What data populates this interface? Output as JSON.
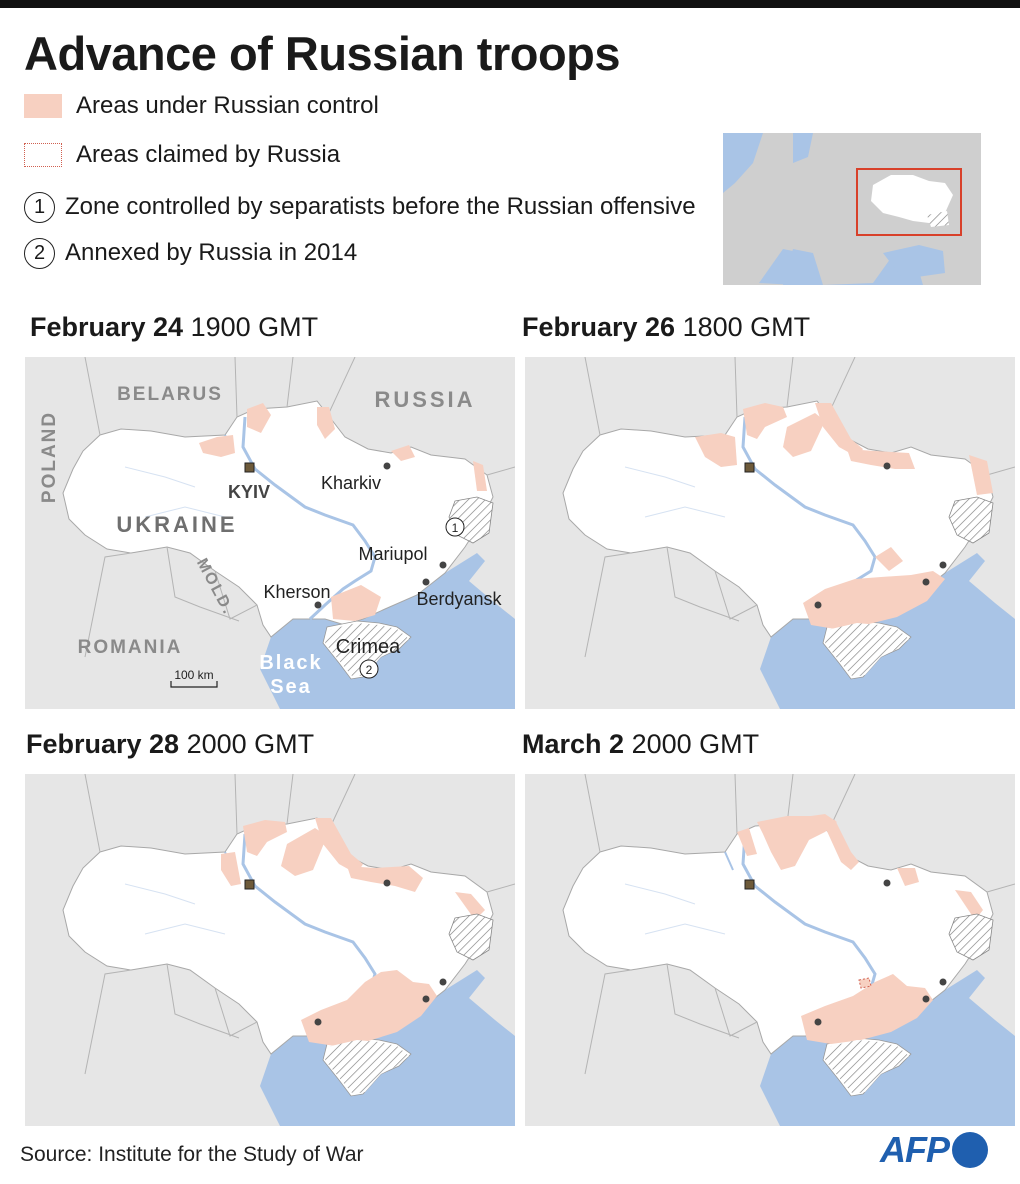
{
  "title": "Advance of Russian troops",
  "legend": {
    "control": "Areas under Russian control",
    "claimed": "Areas claimed by Russia",
    "zone1_num": "1",
    "zone1": "Zone controlled by separatists before the Russian offensive",
    "zone2_num": "2",
    "zone2": "Annexed by Russia in 2014"
  },
  "panels": [
    {
      "date": "February 24",
      "time": "1900 GMT"
    },
    {
      "date": "February 26",
      "time": "1800 GMT"
    },
    {
      "date": "February 28",
      "time": "2000 GMT"
    },
    {
      "date": "March 2",
      "time": "2000 GMT"
    }
  ],
  "map_labels": {
    "belarus": "BELARUS",
    "russia": "RUSSIA",
    "poland": "POLAND",
    "ukraine": "UKRAINE",
    "kyiv": "KYIV",
    "kharkiv": "Kharkiv",
    "mariupol": "Mariupol",
    "kherson": "Kherson",
    "berdyansk": "Berdyansk",
    "crimea": "Crimea",
    "moldova": "MOLD.",
    "romania": "ROMANIA",
    "black_sea_1": "Black",
    "black_sea_2": "Sea",
    "scale": "100 km",
    "marker1": "1",
    "marker2": "2"
  },
  "colors": {
    "russian_control": "#f7d0c1",
    "sea": "#a9c4e6",
    "land_other": "#e6e6e6",
    "ukraine_land": "#ffffff",
    "inset_highlight": "#d8402a",
    "brand": "#1f5faf"
  },
  "source": "Source: Institute for the Study of War",
  "logo": "AFP"
}
